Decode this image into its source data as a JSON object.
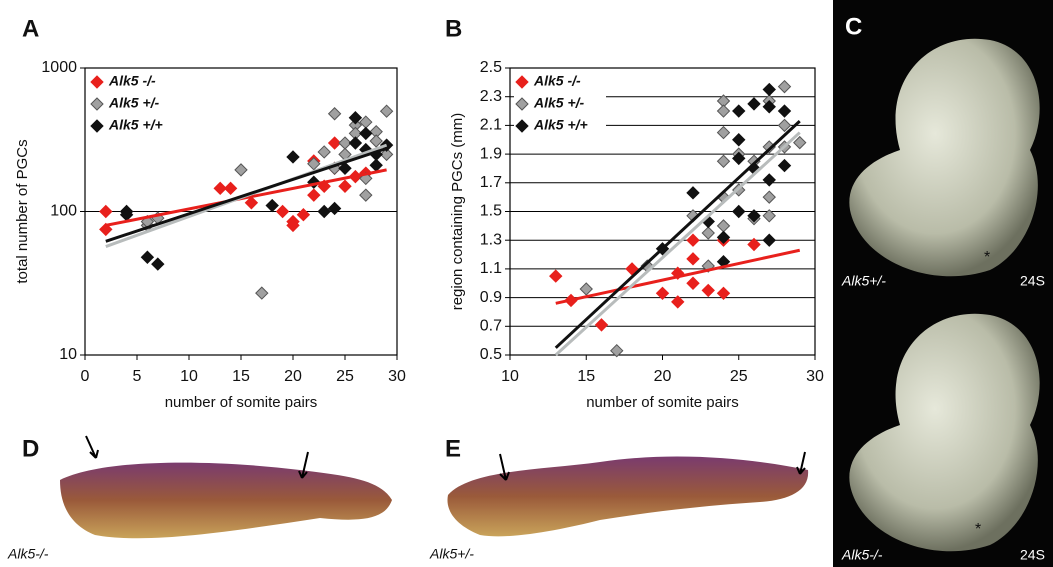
{
  "chart_data": [
    {
      "type": "scatter",
      "panel_label": "A",
      "xlabel": "number of somite pairs",
      "ylabel": "total number of PGCs",
      "xlim": [
        0,
        30
      ],
      "xticks": [
        0,
        5,
        10,
        15,
        20,
        25,
        30
      ],
      "ylim": [
        10,
        1000
      ],
      "yticks": [
        10,
        100,
        1000
      ],
      "yscale": "log",
      "grid": true,
      "legend": "upper left",
      "series": [
        {
          "name": "Alk5 -/-",
          "color": "#e8201c",
          "x": [
            2,
            2,
            13,
            14,
            16,
            19,
            20,
            20,
            21,
            22,
            22,
            23,
            24,
            24,
            25,
            26,
            27
          ],
          "values": [
            100,
            75,
            145,
            145,
            115,
            100,
            85,
            80,
            95,
            225,
            130,
            150,
            200,
            300,
            150,
            175,
            185
          ],
          "trend": {
            "x": [
              2,
              29
            ],
            "values": [
              80,
              195
            ]
          }
        },
        {
          "name": "Alk5 +/-",
          "color": "#a0a0a0",
          "x": [
            4,
            6,
            6,
            7,
            15,
            17,
            22,
            23,
            24,
            24,
            25,
            25,
            26,
            26,
            27,
            27,
            27,
            28,
            28,
            29,
            29
          ],
          "values": [
            100,
            80,
            85,
            90,
            195,
            27,
            215,
            260,
            480,
            200,
            300,
            250,
            400,
            350,
            170,
            130,
            420,
            360,
            310,
            500,
            250
          ],
          "trend": {
            "x": [
              2,
              29
            ],
            "values": [
              57,
              290
            ]
          }
        },
        {
          "name": "Alk5 +/+",
          "color": "#111111",
          "x": [
            4,
            4,
            6,
            7,
            18,
            20,
            22,
            23,
            24,
            25,
            26,
            26,
            27,
            27,
            28,
            28,
            29
          ],
          "values": [
            100,
            95,
            48,
            43,
            110,
            240,
            160,
            100,
            105,
            200,
            450,
            300,
            350,
            270,
            210,
            250,
            290
          ],
          "trend": {
            "x": [
              2,
              29
            ],
            "values": [
              62,
              275
            ]
          }
        }
      ]
    },
    {
      "type": "scatter",
      "panel_label": "B",
      "xlabel": "number of somite pairs",
      "ylabel": "region containing PGCs (mm)",
      "xlim": [
        10,
        30
      ],
      "xticks": [
        10,
        15,
        20,
        25,
        30
      ],
      "ylim": [
        0.5,
        2.5
      ],
      "yticks": [
        0.5,
        0.7,
        0.9,
        1.1,
        1.3,
        1.5,
        1.7,
        1.9,
        2.1,
        2.3,
        2.5
      ],
      "yscale": "linear",
      "grid": true,
      "legend": "upper left",
      "series": [
        {
          "name": "Alk5 -/-",
          "color": "#e8201c",
          "x": [
            13,
            14,
            16,
            18,
            20,
            21,
            21,
            22,
            22,
            22,
            23,
            24,
            24,
            26
          ],
          "values": [
            1.05,
            0.88,
            0.71,
            1.1,
            0.93,
            0.87,
            1.07,
            1.3,
            1.0,
            1.17,
            0.95,
            0.93,
            1.3,
            1.27
          ],
          "trend": {
            "x": [
              13,
              29
            ],
            "values": [
              0.86,
              1.23
            ]
          }
        },
        {
          "name": "Alk5 +/-",
          "color": "#a0a0a0",
          "x": [
            15,
            17,
            19,
            22,
            23,
            23,
            24,
            24,
            24,
            24,
            24,
            24,
            25,
            25,
            26,
            26,
            27,
            27,
            27,
            27,
            28,
            28,
            28,
            29
          ],
          "values": [
            0.96,
            0.53,
            1.12,
            1.47,
            1.35,
            1.12,
            2.27,
            2.2,
            2.05,
            1.85,
            1.6,
            1.4,
            1.9,
            1.65,
            1.85,
            1.45,
            2.27,
            1.95,
            1.47,
            1.6,
            2.37,
            2.1,
            1.95,
            1.98
          ],
          "trend": {
            "x": [
              13,
              29
            ],
            "values": [
              0.5,
              2.05
            ]
          }
        },
        {
          "name": "Alk5 +/+",
          "color": "#111111",
          "x": [
            20,
            22,
            23,
            24,
            24,
            25,
            25,
            25,
            25,
            26,
            26,
            26,
            27,
            27,
            27,
            28,
            28,
            27
          ],
          "values": [
            1.24,
            1.63,
            1.43,
            1.15,
            1.32,
            2.2,
            2.0,
            1.5,
            1.87,
            2.25,
            1.8,
            1.47,
            2.35,
            1.72,
            1.3,
            2.2,
            1.82,
            2.23
          ],
          "trend": {
            "x": [
              13,
              29
            ],
            "values": [
              0.55,
              2.13
            ]
          }
        }
      ]
    }
  ],
  "photo_labels": {
    "C": "C",
    "D": "D",
    "E": "E"
  },
  "captions": {
    "c_top": "Alk5+/-",
    "c_top_stage": "24S",
    "c_bottom": "Alk5-/-",
    "c_bottom_stage": "24S",
    "d": "Alk5-/-",
    "e": "Alk5+/-"
  }
}
